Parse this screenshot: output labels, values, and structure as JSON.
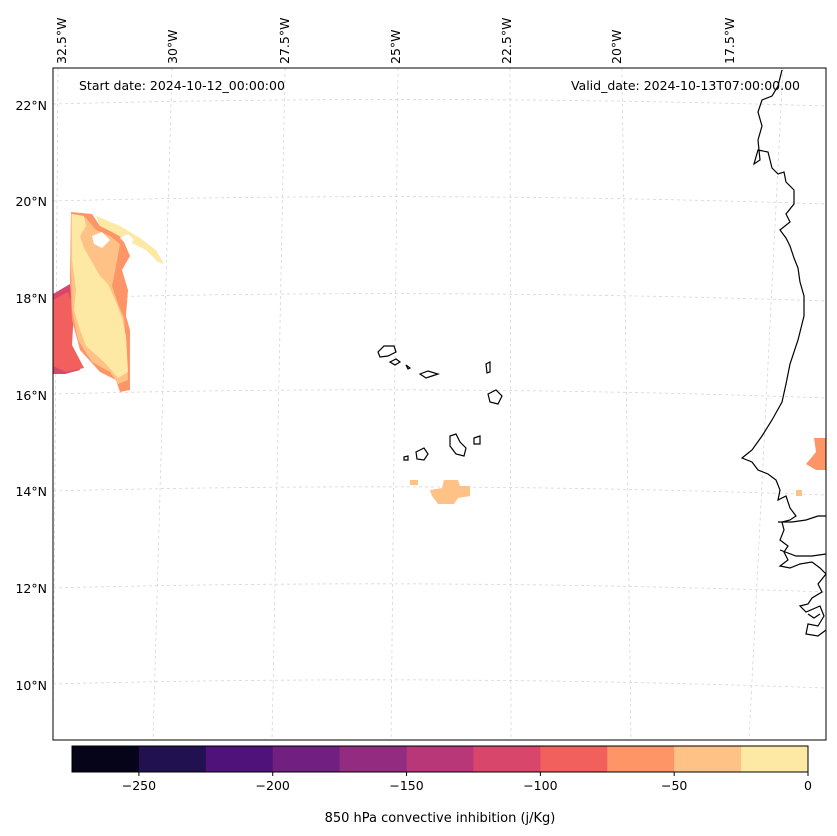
{
  "map": {
    "start_date": "Start date: 2024-10-12_00:00:00",
    "valid_date": "Valid_date: 2024-10-13T07:00:00.00",
    "lon_labels": [
      "32.5°W",
      "30°W",
      "27.5°W",
      "25°W",
      "22.5°W",
      "20°W",
      "17.5°W"
    ],
    "lat_labels": [
      "22°N",
      "20°N",
      "18°N",
      "16°N",
      "14°N",
      "12°N",
      "10°N"
    ]
  },
  "colorbar": {
    "title": "850 hPa convective inhibition (j/Kg)",
    "range": [
      -275,
      0
    ],
    "tick_values": [
      -250,
      -200,
      -150,
      -100,
      -50,
      0
    ],
    "tick_labels": [
      "−250",
      "−200",
      "−150",
      "−100",
      "−50",
      "0"
    ],
    "levels": [
      -275,
      -250,
      -225,
      -200,
      -175,
      -150,
      -125,
      -100,
      -75,
      -50,
      -25,
      0
    ],
    "colors": [
      "#050418",
      "#221150",
      "#4f127b",
      "#711f81",
      "#932b80",
      "#b73779",
      "#d9466b",
      "#f1605d",
      "#fd9567",
      "#fec287",
      "#fde8a4"
    ]
  },
  "colors": {
    "coast": "#000000",
    "grid": "#d0d0d0",
    "frame": "#000000"
  }
}
